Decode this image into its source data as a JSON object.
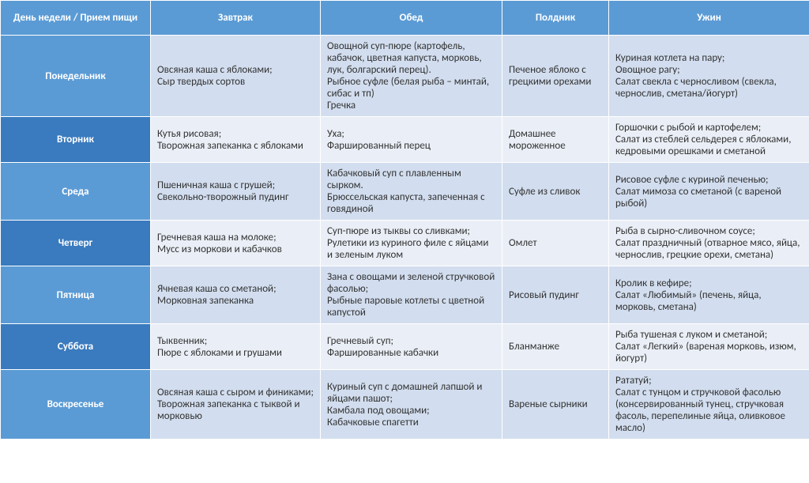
{
  "colors": {
    "header_bg": "#5b9bd5",
    "header_fg": "#ffffff",
    "stripe_a_bg": "#d2deef",
    "stripe_b_bg": "#eaeff7",
    "border": "#ffffff"
  },
  "columns": [
    "День недели / Прием пищи",
    "Завтрак",
    "Обед",
    "Полдник",
    "Ужин"
  ],
  "rows": [
    {
      "day": "Понедельник",
      "day_bg": "#5b9bd5",
      "row_bg": "#d2deef",
      "breakfast": "Овсяная каша с яблоками;\nСыр твердых сортов",
      "lunch": "Овощной суп-пюре (картофель, кабачок, цветная капуста, морковь, лук, болгарский перец).\nРыбное суфле (белая рыба – минтай, сибас и тп)\nГречка",
      "snack": "Печеное яблоко с грецкими орехами",
      "dinner": "Куриная котлета на пару;\nОвощное рагу;\nСалат свекла с черносливом (свекла, чернослив, сметана/йогурт)"
    },
    {
      "day": "Вторник",
      "day_bg": "#3a7bbf",
      "row_bg": "#eaeff7",
      "breakfast": "Кутья рисовая;\nТворожная запеканка с яблоками",
      "lunch": "Уха;\nФаршированный перец",
      "snack": "Домашнее мороженное",
      "dinner": "Горшочки с рыбой и картофелем;\nСалат из стеблей сельдерея с яблоками, кедровыми орешками и сметаной"
    },
    {
      "day": "Среда",
      "day_bg": "#5b9bd5",
      "row_bg": "#d2deef",
      "breakfast": "Пшеничная каша с грушей;\nСвекольно-творожный пудинг",
      "lunch": "Кабачковый суп с плавленным сырком.\nБрюссельская капуста, запеченная с говядиной",
      "snack": "Суфле из сливок",
      "dinner": "Рисовое суфле с куриной печенью;\nСалат мимоза со сметаной (с вареной рыбой)"
    },
    {
      "day": "Четверг",
      "day_bg": "#3a7bbf",
      "row_bg": "#eaeff7",
      "breakfast": "Гречневая каша на молоке;\nМусс из моркови и кабачков",
      "lunch": "Суп-пюре из тыквы со сливками;\nРулетики из куриного филе с яйцами и зеленым луком",
      "snack": "Омлет",
      "dinner": "Рыба в сырно-сливочном соусе;\nСалат праздничный (отварное мясо, яйца, чернослив, грецкие орехи, сметана)"
    },
    {
      "day": "Пятница",
      "day_bg": "#5b9bd5",
      "row_bg": "#d2deef",
      "breakfast": "Ячневая каша со сметаной;\nМорковная запеканка",
      "lunch": "Зана с овощами и зеленой стручковой фасолью;\nРыбные паровые котлеты с цветной капустой",
      "snack": "Рисовый пудинг",
      "dinner": "Кролик в кефире;\nСалат «Любимый» (печень, яйца, морковь, сметана)"
    },
    {
      "day": "Суббота",
      "day_bg": "#3a7bbf",
      "row_bg": "#eaeff7",
      "breakfast": "Тыквенник;\nПюре с яблоками и грушами",
      "lunch": "Гречневый суп;\nФаршированные кабачки",
      "snack": "Бланманже",
      "dinner": "Рыба тушеная с луком и сметаной;\nСалат «Легкий» (вареная морковь, изюм, йогурт)"
    },
    {
      "day": "Воскресенье",
      "day_bg": "#5b9bd5",
      "row_bg": "#d2deef",
      "breakfast": "Овсяная каша с сыром и финиками;\nТворожная запеканка с тыквой и морковью",
      "lunch": "Куриный суп с домашней лапшой и яйцами пашот;\nКамбала под овощами;\nКабачковые спагетти",
      "snack": "Вареные сырники",
      "dinner": "Рататуй;\nСалат с тунцом и стручковой фасолью (консервированный тунец, стручковая фасоль, перепелиные яйца, оливковое масло)"
    }
  ]
}
